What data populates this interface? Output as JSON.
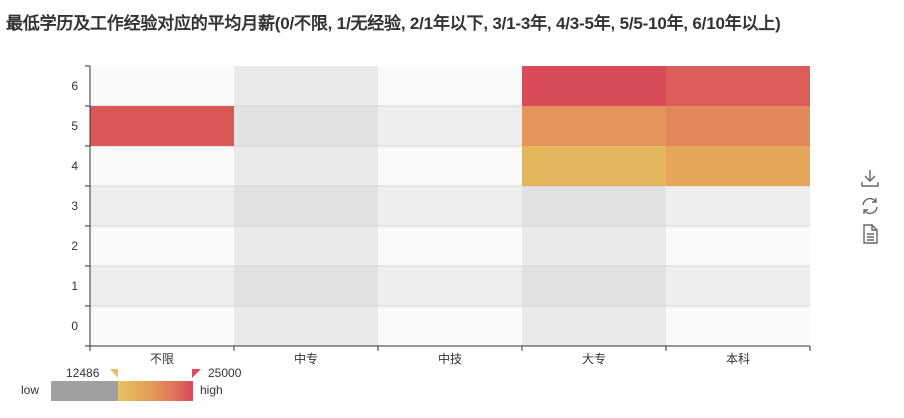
{
  "title": "最低学历及工作经验对应的平均月薪(0/不限, 1/无经验, 2/1年以下, 3/1-3年, 4/3-5年, 5/5-10年, 6/10年以上)",
  "chart_data": {
    "type": "heatmap",
    "x_categories": [
      "不限",
      "中专",
      "中技",
      "大专",
      "本科"
    ],
    "y_categories": [
      "0",
      "1",
      "2",
      "3",
      "4",
      "5",
      "6"
    ],
    "cells": [
      {
        "x": "不限",
        "y": "5",
        "value": 24000
      },
      {
        "x": "大专",
        "y": "6",
        "value": 25000
      },
      {
        "x": "大专",
        "y": "5",
        "value": 18500
      },
      {
        "x": "大专",
        "y": "4",
        "value": 14200
      },
      {
        "x": "本科",
        "y": "6",
        "value": 23500
      },
      {
        "x": "本科",
        "y": "5",
        "value": 20000
      },
      {
        "x": "本科",
        "y": "4",
        "value": 16500
      }
    ],
    "split_area": true,
    "visual_map": {
      "min": 12486,
      "max": 25000,
      "min_label": "12486",
      "max_label": "25000",
      "low_text": "low",
      "high_text": "high",
      "out_of_range_color": "#a0a0a0",
      "colors": [
        "#e4c260",
        "#e5a55a",
        "#e07f5a",
        "#d84b58"
      ]
    }
  },
  "toolbox": {
    "items": [
      {
        "name": "download-icon",
        "label": "save as image"
      },
      {
        "name": "refresh-icon",
        "label": "restore"
      },
      {
        "name": "document-icon",
        "label": "data view"
      }
    ]
  }
}
